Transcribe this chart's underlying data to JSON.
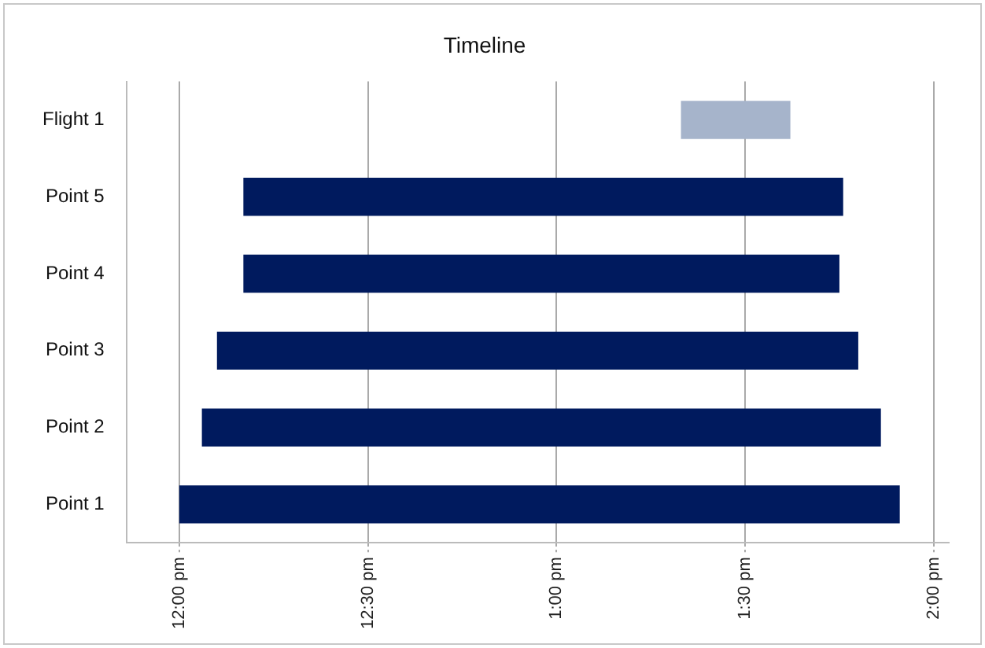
{
  "chart_data": {
    "type": "bar",
    "title": "Timeline",
    "orientation": "horizontal",
    "categories": [
      "Flight 1",
      "Point 5",
      "Point 4",
      "Point 3",
      "Point 2",
      "Point 1"
    ],
    "base": [
      13.33,
      12.17,
      12.17,
      12.1,
      12.06,
      12.0
    ],
    "values": [
      0.29,
      1.59,
      1.58,
      1.7,
      1.8,
      1.91
    ],
    "colors": [
      "#a6b4cb",
      "#001a5e",
      "#001a5e",
      "#001a5e",
      "#001a5e",
      "#001a5e"
    ],
    "xlim": [
      11.86,
      14.04
    ],
    "xticks": [
      {
        "value": 12,
        "label": "12:00 pm"
      },
      {
        "value": 12.5,
        "label": "12:30 pm"
      },
      {
        "value": 13,
        "label": "1:00 pm"
      },
      {
        "value": 13.5,
        "label": "1:30 pm"
      },
      {
        "value": 14,
        "label": "2:00 pm"
      }
    ],
    "grid": "x"
  }
}
